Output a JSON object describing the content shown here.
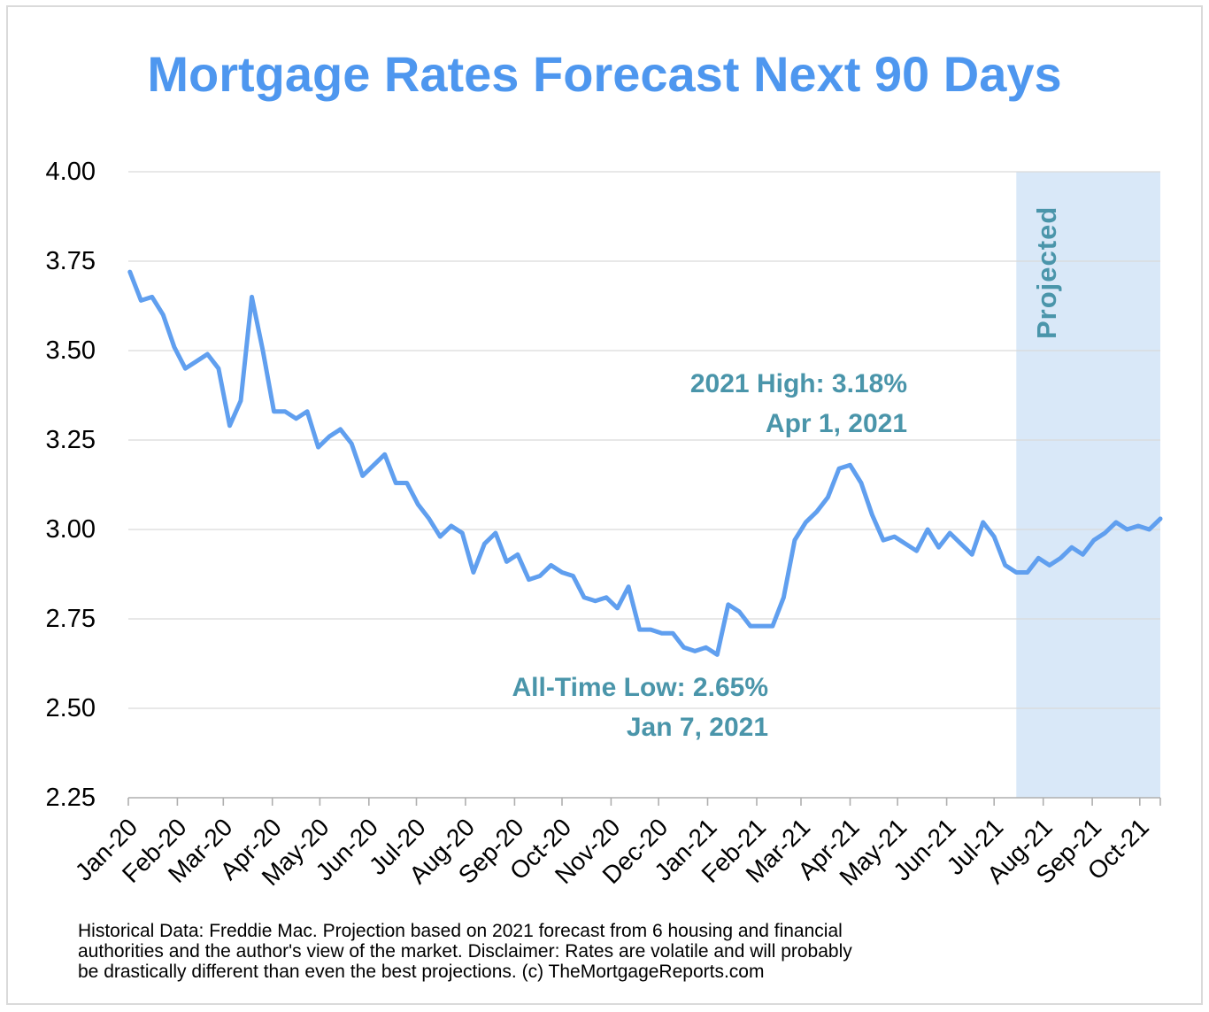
{
  "page": {
    "title": "Mortgage Rates Forecast Next 90 Days",
    "footer_lines": [
      "Historical Data: Freddie Mac. Projection based on 2021 forecast from 6 housing and financial",
      "authorities and the author's view of the market. Disclaimer: Rates are volatile and will probably",
      "be drastically different than even the best projections. (c) TheMortgageReports.com"
    ]
  },
  "colors": {
    "title_blue": "#4E97EF",
    "line_blue": "#609FEF",
    "teal": "#4A95AA",
    "projection_fill": "#D9E8F8",
    "gridline": "#D9D9D9",
    "axis": "#AFAFAF",
    "border": "#DADADA"
  },
  "chart_data": {
    "type": "line",
    "title": "Mortgage Rates Forecast Next 90 Days",
    "xlabel": "",
    "ylabel": "",
    "ylim": [
      2.25,
      4.0
    ],
    "grid": "horizontal",
    "legend": "none",
    "y_ticks": [
      "4.00",
      "3.75",
      "3.50",
      "3.25",
      "3.00",
      "2.75",
      "2.50",
      "2.25"
    ],
    "x_tick_labels": [
      "Jan-20",
      "Feb-20",
      "Mar-20",
      "Apr-20",
      "May-20",
      "Jun-20",
      "Jul-20",
      "Aug-20",
      "Sep-20",
      "Oct-20",
      "Nov-20",
      "Dec-20",
      "Jan-21",
      "Feb-21",
      "Mar-21",
      "Apr-21",
      "May-21",
      "Jun-21",
      "Jul-21",
      "Aug-21",
      "Sep-21",
      "Oct-21"
    ],
    "projection_band": {
      "start_date": "2021-07-15",
      "label": "Projected"
    },
    "annotations": {
      "high": {
        "line1": "2021 High: 3.18%",
        "line2": "Apr 1, 2021"
      },
      "low": {
        "line1": "All-Time Low: 2.65%",
        "line2": "Jan 7, 2021"
      },
      "projected_label": "Projected"
    },
    "series": [
      {
        "name": "historical",
        "start_date": "2020-01-02",
        "interval_days": 7,
        "values": [
          3.72,
          3.64,
          3.65,
          3.6,
          3.51,
          3.45,
          3.47,
          3.49,
          3.45,
          3.29,
          3.36,
          3.65,
          3.5,
          3.33,
          3.33,
          3.31,
          3.33,
          3.23,
          3.26,
          3.28,
          3.24,
          3.15,
          3.18,
          3.21,
          3.13,
          3.13,
          3.07,
          3.03,
          2.98,
          3.01,
          2.99,
          2.88,
          2.96,
          2.99,
          2.91,
          2.93,
          2.86,
          2.87,
          2.9,
          2.88,
          2.87,
          2.81,
          2.8,
          2.81,
          2.78,
          2.84,
          2.72,
          2.72,
          2.71,
          2.71,
          2.67,
          2.66,
          2.67,
          2.65,
          2.79,
          2.77,
          2.73,
          2.73,
          2.73,
          2.81,
          2.97,
          3.02,
          3.05,
          3.09,
          3.17,
          3.18,
          3.13,
          3.04,
          2.97,
          2.98,
          2.96,
          2.94,
          3.0,
          2.95,
          2.99,
          2.96,
          2.93,
          3.02,
          2.98,
          2.9,
          2.88
        ]
      },
      {
        "name": "projected",
        "start_date": "2021-07-22",
        "interval_days": 7,
        "values": [
          2.88,
          2.92,
          2.9,
          2.92,
          2.95,
          2.93,
          2.97,
          2.99,
          3.02,
          3.0,
          3.01,
          3.0,
          3.03
        ]
      }
    ]
  }
}
